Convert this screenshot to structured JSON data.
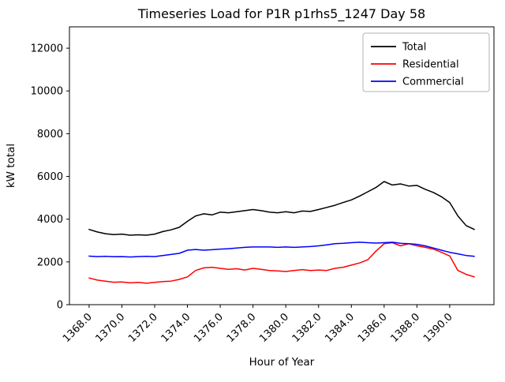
{
  "figure": {
    "title": "Timeseries Load for P1R p1rhs5_1247  Day 58",
    "xlabel": "Hour of Year",
    "ylabel": "kW total"
  },
  "chart_data": {
    "type": "line",
    "title": "Timeseries Load for P1R p1rhs5_1247  Day 58",
    "xlabel": "Hour of Year",
    "ylabel": "kW total",
    "xlim": [
      1366.8,
      1392.7
    ],
    "ylim": [
      0,
      13000
    ],
    "grid": false,
    "x_ticks": [
      1368,
      1370,
      1372,
      1374,
      1376,
      1378,
      1380,
      1382,
      1384,
      1386,
      1388,
      1390
    ],
    "x_tick_labels": [
      "1368.0",
      "1370.0",
      "1372.0",
      "1374.0",
      "1376.0",
      "1378.0",
      "1380.0",
      "1382.0",
      "1384.0",
      "1386.0",
      "1388.0",
      "1390.0"
    ],
    "y_ticks": [
      0,
      2000,
      4000,
      6000,
      8000,
      10000,
      12000
    ],
    "y_tick_labels": [
      "0",
      "2000",
      "4000",
      "6000",
      "8000",
      "10000",
      "12000"
    ],
    "legend": {
      "location": "upper right",
      "entries": [
        "Total",
        "Residential",
        "Commercial"
      ]
    },
    "x": [
      1368.0,
      1368.5,
      1369.0,
      1369.5,
      1370.0,
      1370.5,
      1371.0,
      1371.5,
      1372.0,
      1372.5,
      1373.0,
      1373.5,
      1374.0,
      1374.5,
      1375.0,
      1375.5,
      1376.0,
      1376.5,
      1377.0,
      1377.5,
      1378.0,
      1378.5,
      1379.0,
      1379.5,
      1380.0,
      1380.5,
      1381.0,
      1381.5,
      1382.0,
      1382.5,
      1383.0,
      1383.5,
      1384.0,
      1384.5,
      1385.0,
      1385.5,
      1386.0,
      1386.5,
      1387.0,
      1387.5,
      1388.0,
      1388.5,
      1389.0,
      1389.5,
      1390.0,
      1390.5,
      1391.0,
      1391.5
    ],
    "series": [
      {
        "name": "Total",
        "color": "#000000",
        "values": [
          3520,
          3400,
          3320,
          3280,
          3300,
          3250,
          3270,
          3250,
          3300,
          3420,
          3500,
          3620,
          3900,
          4150,
          4250,
          4200,
          4330,
          4300,
          4350,
          4400,
          4450,
          4400,
          4330,
          4300,
          4350,
          4300,
          4380,
          4360,
          4450,
          4550,
          4650,
          4780,
          4900,
          5080,
          5280,
          5480,
          5760,
          5600,
          5650,
          5550,
          5580,
          5400,
          5250,
          5050,
          4780,
          4150,
          3700,
          3520
        ]
      },
      {
        "name": "Residential",
        "color": "#ff0000",
        "values": [
          1250,
          1150,
          1100,
          1050,
          1060,
          1020,
          1040,
          1000,
          1040,
          1080,
          1100,
          1180,
          1300,
          1600,
          1720,
          1750,
          1700,
          1650,
          1680,
          1620,
          1700,
          1650,
          1600,
          1580,
          1550,
          1600,
          1640,
          1600,
          1620,
          1600,
          1700,
          1750,
          1850,
          1950,
          2100,
          2500,
          2850,
          2900,
          2750,
          2850,
          2750,
          2680,
          2600,
          2450,
          2280,
          1600,
          1420,
          1300
        ]
      },
      {
        "name": "Commercial",
        "color": "#0000ff",
        "values": [
          2270,
          2250,
          2260,
          2240,
          2250,
          2230,
          2250,
          2260,
          2250,
          2300,
          2350,
          2400,
          2550,
          2580,
          2550,
          2570,
          2600,
          2620,
          2650,
          2680,
          2700,
          2700,
          2700,
          2680,
          2700,
          2680,
          2700,
          2720,
          2750,
          2800,
          2850,
          2870,
          2900,
          2920,
          2900,
          2880,
          2900,
          2920,
          2870,
          2850,
          2820,
          2750,
          2650,
          2550,
          2450,
          2380,
          2300,
          2260
        ]
      }
    ]
  }
}
